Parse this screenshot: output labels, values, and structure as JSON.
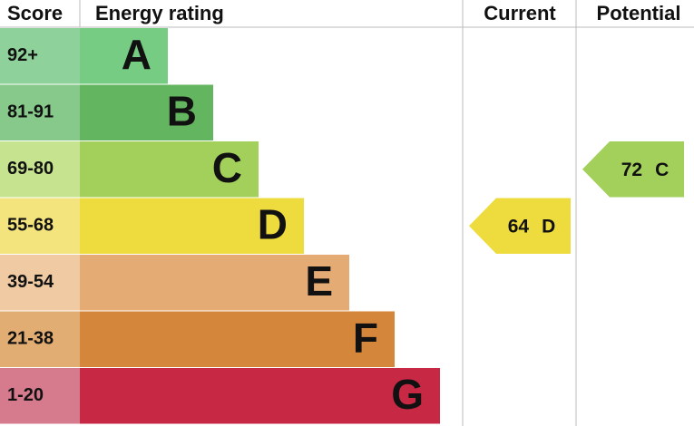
{
  "header": {
    "score": "Score",
    "rating": "Energy rating",
    "current": "Current",
    "potential": "Potential"
  },
  "bands": [
    {
      "score": "92+",
      "letter": "A",
      "score_color": "#8ed19a",
      "color": "#77cc83"
    },
    {
      "score": "81-91",
      "letter": "B",
      "score_color": "#86c98b",
      "color": "#64b55f"
    },
    {
      "score": "69-80",
      "letter": "C",
      "score_color": "#c6e48f",
      "color": "#a3d05a"
    },
    {
      "score": "55-68",
      "letter": "D",
      "score_color": "#f4e47d",
      "color": "#eedb3d"
    },
    {
      "score": "39-54",
      "letter": "E",
      "score_color": "#efcaa3",
      "color": "#e5ab74"
    },
    {
      "score": "21-38",
      "letter": "F",
      "score_color": "#e2ad72",
      "color": "#d4873a"
    },
    {
      "score": "1-20",
      "letter": "G",
      "score_color": "#d67a8e",
      "color": "#c72844"
    }
  ],
  "current": {
    "value": 64,
    "band": "D"
  },
  "potential": {
    "value": 72,
    "band": "C"
  }
}
